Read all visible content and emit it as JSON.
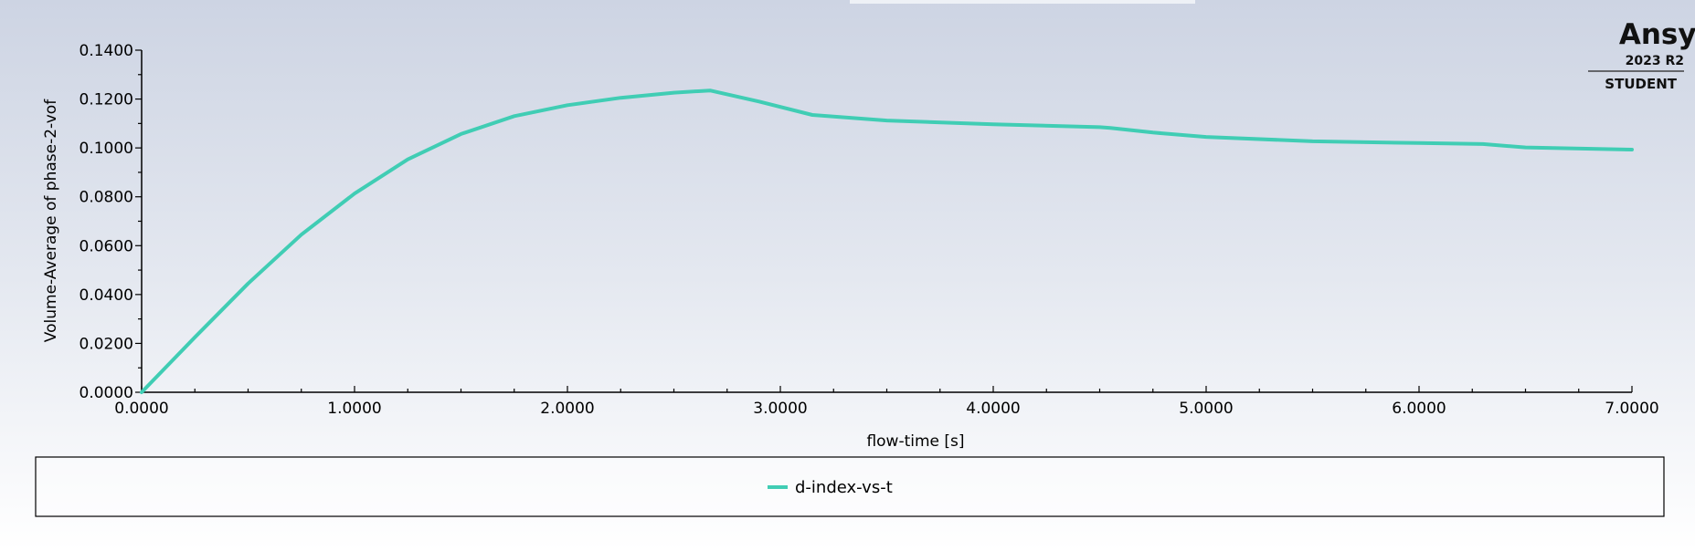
{
  "logo": {
    "name": "Ansys",
    "version": "2023 R2",
    "edition": "STUDENT"
  },
  "colors": {
    "series": "#40cdb4",
    "axis": "#000000"
  },
  "chart_data": {
    "type": "line",
    "title": "",
    "xlabel": "flow-time [s]",
    "ylabel": "Volume-Average of phase-2-vof",
    "xlim": [
      0,
      7
    ],
    "ylim": [
      0,
      0.14
    ],
    "x_ticks": [
      0,
      1,
      2,
      3,
      4,
      5,
      6,
      7
    ],
    "x_tick_labels": [
      "0.0000",
      "1.0000",
      "2.0000",
      "3.0000",
      "4.0000",
      "5.0000",
      "6.0000",
      "7.0000"
    ],
    "y_ticks": [
      0,
      0.02,
      0.04,
      0.06,
      0.08,
      0.1,
      0.12,
      0.14
    ],
    "y_tick_labels": [
      "0.0000",
      "0.0200",
      "0.0400",
      "0.0600",
      "0.0800",
      "0.1000",
      "0.1200",
      "0.1400"
    ],
    "grid": false,
    "legend_position": "bottom",
    "series": [
      {
        "name": "d-index-vs-t",
        "color": "#40cdb4",
        "x": [
          0,
          0.25,
          0.5,
          0.75,
          1.0,
          1.25,
          1.5,
          1.75,
          2.0,
          2.25,
          2.5,
          2.67,
          2.9,
          3.15,
          3.5,
          4.0,
          4.5,
          4.55,
          4.75,
          5.0,
          5.5,
          6.0,
          6.3,
          6.5,
          7.0
        ],
        "y": [
          0,
          0.0225,
          0.0445,
          0.0645,
          0.0813,
          0.0953,
          0.1057,
          0.113,
          0.1175,
          0.1205,
          0.1226,
          0.1235,
          0.119,
          0.1135,
          0.1112,
          0.1097,
          0.1085,
          0.1082,
          0.1063,
          0.1045,
          0.1027,
          0.102,
          0.1016,
          0.1002,
          0.0993
        ]
      }
    ]
  }
}
